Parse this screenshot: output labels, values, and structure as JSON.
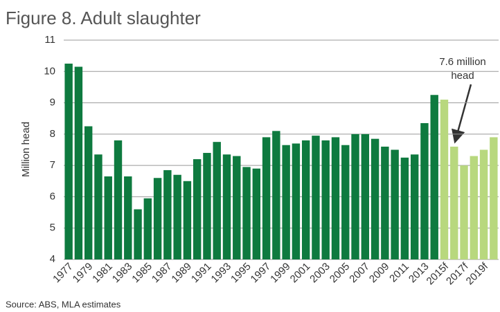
{
  "chart_data": {
    "type": "bar",
    "title": "Figure 8. Adult slaughter",
    "y_label": "Million head",
    "source": "Source: ABS, MLA estimates",
    "annotation": [
      "7.6 million",
      "head"
    ],
    "categories": [
      "1977",
      null,
      "1979",
      null,
      "1981",
      null,
      "1983",
      null,
      "1985",
      null,
      "1987",
      null,
      "1989",
      null,
      "1991",
      null,
      "1993",
      null,
      "1995",
      null,
      "1997",
      null,
      "1999",
      null,
      "2001",
      null,
      "2003",
      null,
      "2005",
      null,
      "2007",
      null,
      "2009",
      null,
      "2011",
      null,
      "2013",
      null,
      "2015f",
      null,
      "2017f",
      null,
      "2019f",
      null
    ],
    "values": [
      10.25,
      10.15,
      8.25,
      7.35,
      6.65,
      7.8,
      6.65,
      5.6,
      5.95,
      6.6,
      6.85,
      6.7,
      6.5,
      7.2,
      7.4,
      7.75,
      7.35,
      7.3,
      6.95,
      6.9,
      7.9,
      8.1,
      7.65,
      7.7,
      7.8,
      7.95,
      7.8,
      7.9,
      7.65,
      8.0,
      8.0,
      7.85,
      7.6,
      7.5,
      7.25,
      7.35,
      8.35,
      9.25,
      9.1,
      7.6,
      7.0,
      7.3,
      7.5,
      7.9
    ],
    "colors": [
      "#0e7a3f",
      "#0e7a3f",
      "#0e7a3f",
      "#0e7a3f",
      "#0e7a3f",
      "#0e7a3f",
      "#0e7a3f",
      "#0e7a3f",
      "#0e7a3f",
      "#0e7a3f",
      "#0e7a3f",
      "#0e7a3f",
      "#0e7a3f",
      "#0e7a3f",
      "#0e7a3f",
      "#0e7a3f",
      "#0e7a3f",
      "#0e7a3f",
      "#0e7a3f",
      "#0e7a3f",
      "#0e7a3f",
      "#0e7a3f",
      "#0e7a3f",
      "#0e7a3f",
      "#0e7a3f",
      "#0e7a3f",
      "#0e7a3f",
      "#0e7a3f",
      "#0e7a3f",
      "#0e7a3f",
      "#0e7a3f",
      "#0e7a3f",
      "#0e7a3f",
      "#0e7a3f",
      "#0e7a3f",
      "#0e7a3f",
      "#0e7a3f",
      "#0e7a3f",
      "#b8d87e",
      "#b8d87e",
      "#b8d87e",
      "#b8d87e",
      "#b8d87e",
      "#b8d87e"
    ],
    "ylim": [
      4,
      11
    ],
    "yticks": [
      4,
      5,
      6,
      7,
      8,
      9,
      10,
      11
    ],
    "grid": true
  }
}
